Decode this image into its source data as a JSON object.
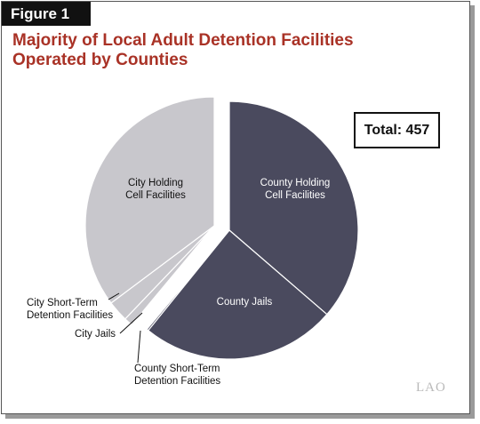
{
  "figure_label": "Figure 1",
  "title_lines": [
    "Majority of Local Adult Detention Facilities",
    "Operated by Counties"
  ],
  "total_label": "Total: 457",
  "logo_text": "LAO",
  "colors": {
    "county": "#4a4a5e",
    "city": "#c8c7cc",
    "title": "#a93226"
  },
  "chart_data": {
    "type": "pie",
    "title": "Majority of Local Adult Detention Facilities Operated by Counties",
    "total": 457,
    "slices": [
      {
        "label_lines": [
          "County Holding",
          "Cell Facilities"
        ],
        "name": "County Holding Cell Facilities",
        "value": 166,
        "group": "county"
      },
      {
        "label_lines": [
          "County Jails"
        ],
        "name": "County Jails",
        "value": 112,
        "group": "county"
      },
      {
        "label_lines": [
          "County Short-Term",
          "Detention Facilities"
        ],
        "name": "County Short-Term Detention Facilities",
        "value": 1,
        "group": "county"
      },
      {
        "label_lines": [
          "City Jails"
        ],
        "name": "City Jails",
        "value": 5,
        "group": "city"
      },
      {
        "label_lines": [
          "City Short-Term",
          "Detention Facilities"
        ],
        "name": "City Short-Term Detention Facilities",
        "value": 12,
        "group": "city"
      },
      {
        "label_lines": [
          "City Holding",
          "Cell Facilities"
        ],
        "name": "City Holding Cell Facilities",
        "value": 161,
        "group": "city"
      }
    ]
  }
}
